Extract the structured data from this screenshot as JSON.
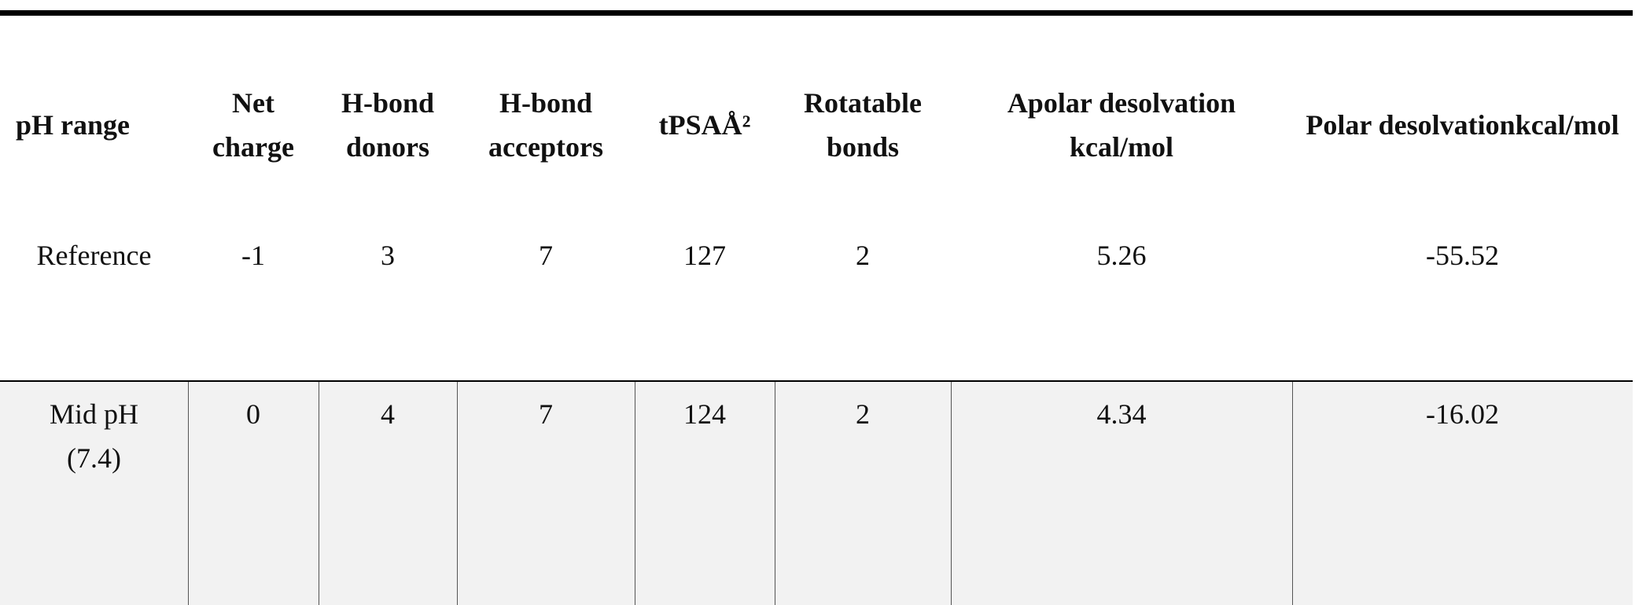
{
  "table": {
    "header": [
      "pH range",
      "Net charge",
      "H-bond donors",
      "H-bond acceptors",
      "tPSAÅ²",
      "Rotatable bonds",
      "Apolar desolvation kcal/mol",
      "Polar desolvationkcal/mol"
    ],
    "rows": [
      [
        "Reference",
        "-1",
        "3",
        "7",
        "127",
        "2",
        "5.26",
        "-55.52"
      ],
      [
        "Mid pH (7.4)",
        "0",
        "4",
        "7",
        "124",
        "2",
        "4.34",
        "-16.02"
      ]
    ]
  }
}
